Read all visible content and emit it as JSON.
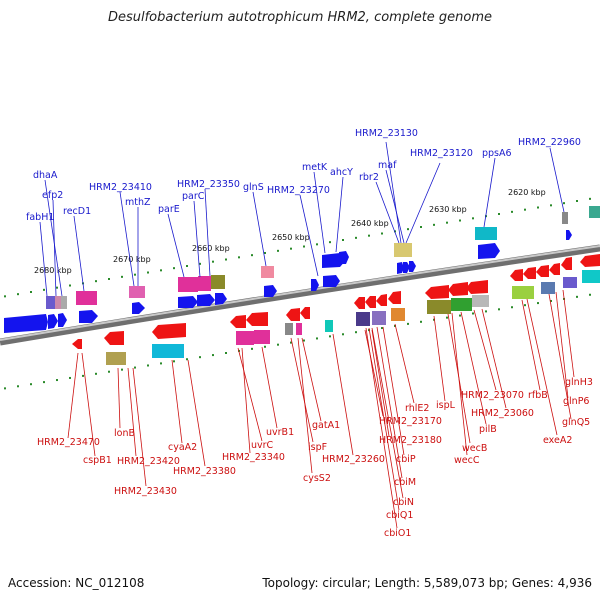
{
  "title": "Desulfobacterium autotrophicum HRM2, complete genome",
  "footer": {
    "accession": "Accession: NC_012108",
    "stats": "Topology: circular; Length: 5,589,073 bp; Genes: 4,936"
  },
  "colors": {
    "forward_label": "#1a1acc",
    "reverse_label": "#cc1010",
    "forward_gene": "#1414ee",
    "reverse_gene": "#ee1414",
    "backbone": "#8a8a8a",
    "tick": "#2a8a2a"
  },
  "scale_ticks": [
    "2680 kbp",
    "2670 kbp",
    "2660 kbp",
    "2650 kbp",
    "2640 kbp",
    "2630 kbp",
    "2620 kbp"
  ],
  "forward_labels": [
    "fabH1",
    "efp2",
    "dhaA",
    "recD1",
    "HRM2_23410",
    "mthZ",
    "parE",
    "HRM2_23350",
    "parC",
    "glnS",
    "HRM2_23270",
    "metK",
    "ahcY",
    "rbr2",
    "HRM2_23130",
    "maf",
    "HRM2_23120",
    "ppsA6",
    "HRM2_22960"
  ],
  "reverse_labels": [
    "HRM2_23470",
    "cspB1",
    "lonB",
    "HRM2_23420",
    "HRM2_23430",
    "cyaA2",
    "HRM2_23380",
    "uvrC",
    "HRM2_23340",
    "uvrB1",
    "ispF",
    "cysS2",
    "gatA1",
    "HRM2_23260",
    "HRM2_23170",
    "HRM2_23180",
    "rhlE2",
    "cbiP",
    "cbiM",
    "cbiN",
    "cbiQ1",
    "cbiO1",
    "ispL",
    "wecB",
    "wecC",
    "pilB",
    "HRM2_23070",
    "HRM2_23060",
    "rfbB",
    "exeA2",
    "glnH3",
    "glnP6",
    "glnQ5"
  ]
}
